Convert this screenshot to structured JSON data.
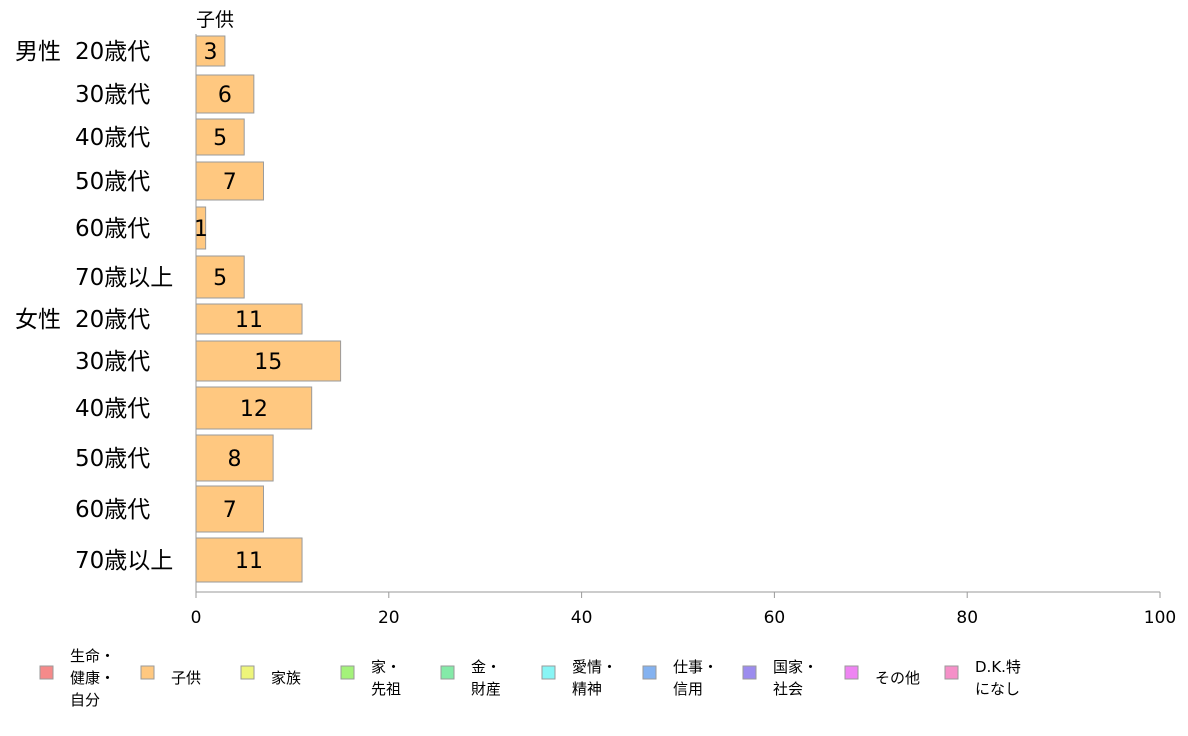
{
  "chart_data": {
    "type": "bar",
    "orientation": "horizontal",
    "series": [
      {
        "name": "子供",
        "color": "#FFC880",
        "values": [
          3,
          6,
          5,
          7,
          1,
          5,
          11,
          15,
          12,
          8,
          7,
          11
        ]
      }
    ],
    "rows": [
      {
        "group": "男性",
        "category": "20歳代"
      },
      {
        "group": "",
        "category": "30歳代"
      },
      {
        "group": "",
        "category": "40歳代"
      },
      {
        "group": "",
        "category": "50歳代"
      },
      {
        "group": "",
        "category": "60歳代"
      },
      {
        "group": "",
        "category": "70歳以上"
      },
      {
        "group": "女性",
        "category": "20歳代"
      },
      {
        "group": "",
        "category": "30歳代"
      },
      {
        "group": "",
        "category": "40歳代"
      },
      {
        "group": "",
        "category": "50歳代"
      },
      {
        "group": "",
        "category": "60歳代"
      },
      {
        "group": "",
        "category": "70歳以上"
      }
    ],
    "xlim": [
      0,
      100
    ],
    "xticks": [
      "0",
      "20",
      "40",
      "60",
      "80",
      "100"
    ],
    "grid": false,
    "legend_position": "bottom",
    "legend": [
      {
        "lines": [
          "生命・",
          "健康・",
          "自分"
        ],
        "color": "#F58A8A"
      },
      {
        "lines": [
          "子供"
        ],
        "color": "#FFC880"
      },
      {
        "lines": [
          "家族"
        ],
        "color": "#EEF57A"
      },
      {
        "lines": [
          "家・",
          "先祖"
        ],
        "color": "#A4F27A"
      },
      {
        "lines": [
          "金・",
          "財産"
        ],
        "color": "#84EAA8"
      },
      {
        "lines": [
          "愛情・",
          "精神"
        ],
        "color": "#88F5F5"
      },
      {
        "lines": [
          "仕事・",
          "信用"
        ],
        "color": "#84B2F0"
      },
      {
        "lines": [
          "国家・",
          "社会"
        ],
        "color": "#9C8CEE"
      },
      {
        "lines": [
          "その他"
        ],
        "color": "#EE84F2"
      },
      {
        "lines": [
          "D.K.特",
          "になし"
        ],
        "color": "#F590C8"
      }
    ]
  }
}
